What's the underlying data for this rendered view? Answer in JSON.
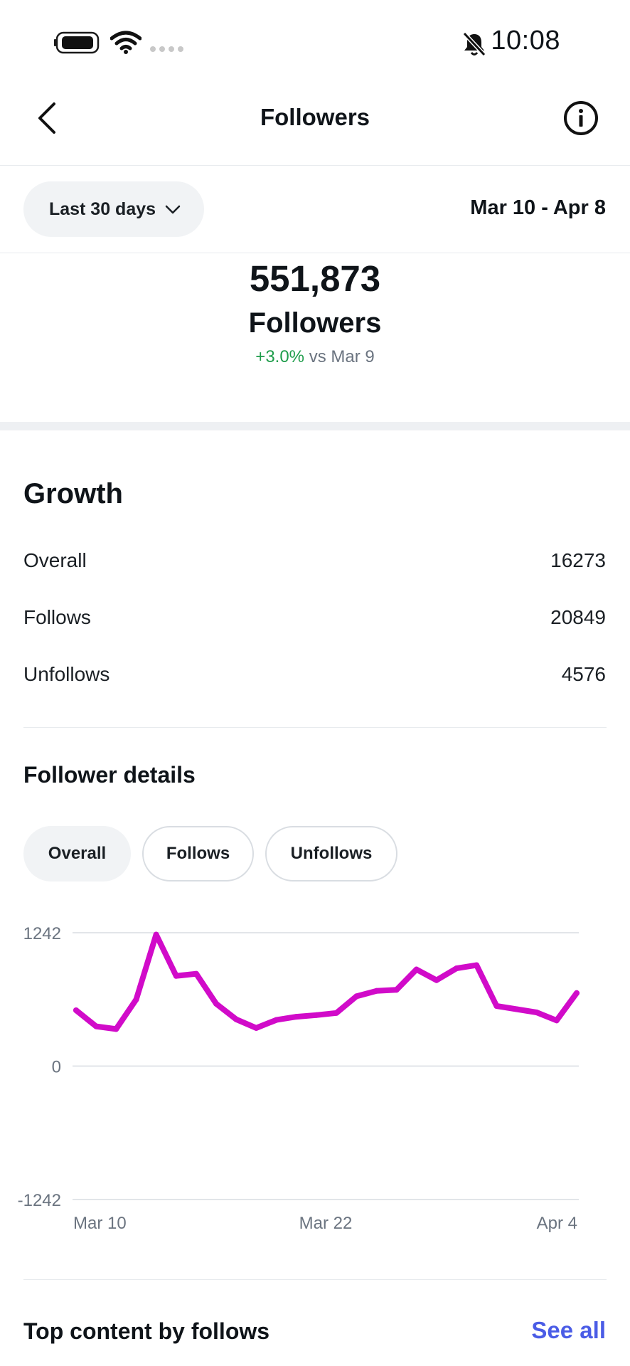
{
  "status_bar": {
    "time": "10:08",
    "icons": [
      "battery-icon",
      "wifi-icon",
      "signal-dots-icon",
      "bell-muted-icon"
    ]
  },
  "header": {
    "title": "Followers",
    "back_icon": "chevron-left-icon",
    "info_icon": "info-icon"
  },
  "range": {
    "selected": "Last 30 days",
    "dates": "Mar 10 - Apr 8"
  },
  "summary": {
    "count": "551,873",
    "label": "Followers",
    "change": "+3.0%",
    "compare": "vs Mar 9",
    "change_color": "#1f9d4b"
  },
  "growth": {
    "title": "Growth",
    "rows": [
      {
        "label": "Overall",
        "value": "16273"
      },
      {
        "label": "Follows",
        "value": "20849"
      },
      {
        "label": "Unfollows",
        "value": "4576"
      }
    ]
  },
  "details": {
    "title": "Follower details",
    "chips": [
      {
        "label": "Overall",
        "active": true
      },
      {
        "label": "Follows",
        "active": false
      },
      {
        "label": "Unfollows",
        "active": false
      }
    ]
  },
  "chart_data": {
    "type": "line",
    "series_color": "#d10bc9",
    "ylim": [
      -1242,
      1242
    ],
    "yticks": [
      "1242",
      "0",
      "-1242"
    ],
    "xticks": [
      "Mar 10",
      "Mar 22",
      "Apr 4"
    ],
    "grid": true,
    "series": [
      {
        "values": [
          520,
          370,
          345,
          620,
          1225,
          840,
          860,
          580,
          435,
          355,
          430,
          460,
          475,
          495,
          650,
          700,
          710,
          900,
          800,
          910,
          940,
          560,
          530,
          500,
          425,
          680
        ]
      }
    ]
  },
  "bottom": {
    "title": "Top content by follows",
    "see_all": "See all",
    "link_color": "#4a5ce6"
  }
}
